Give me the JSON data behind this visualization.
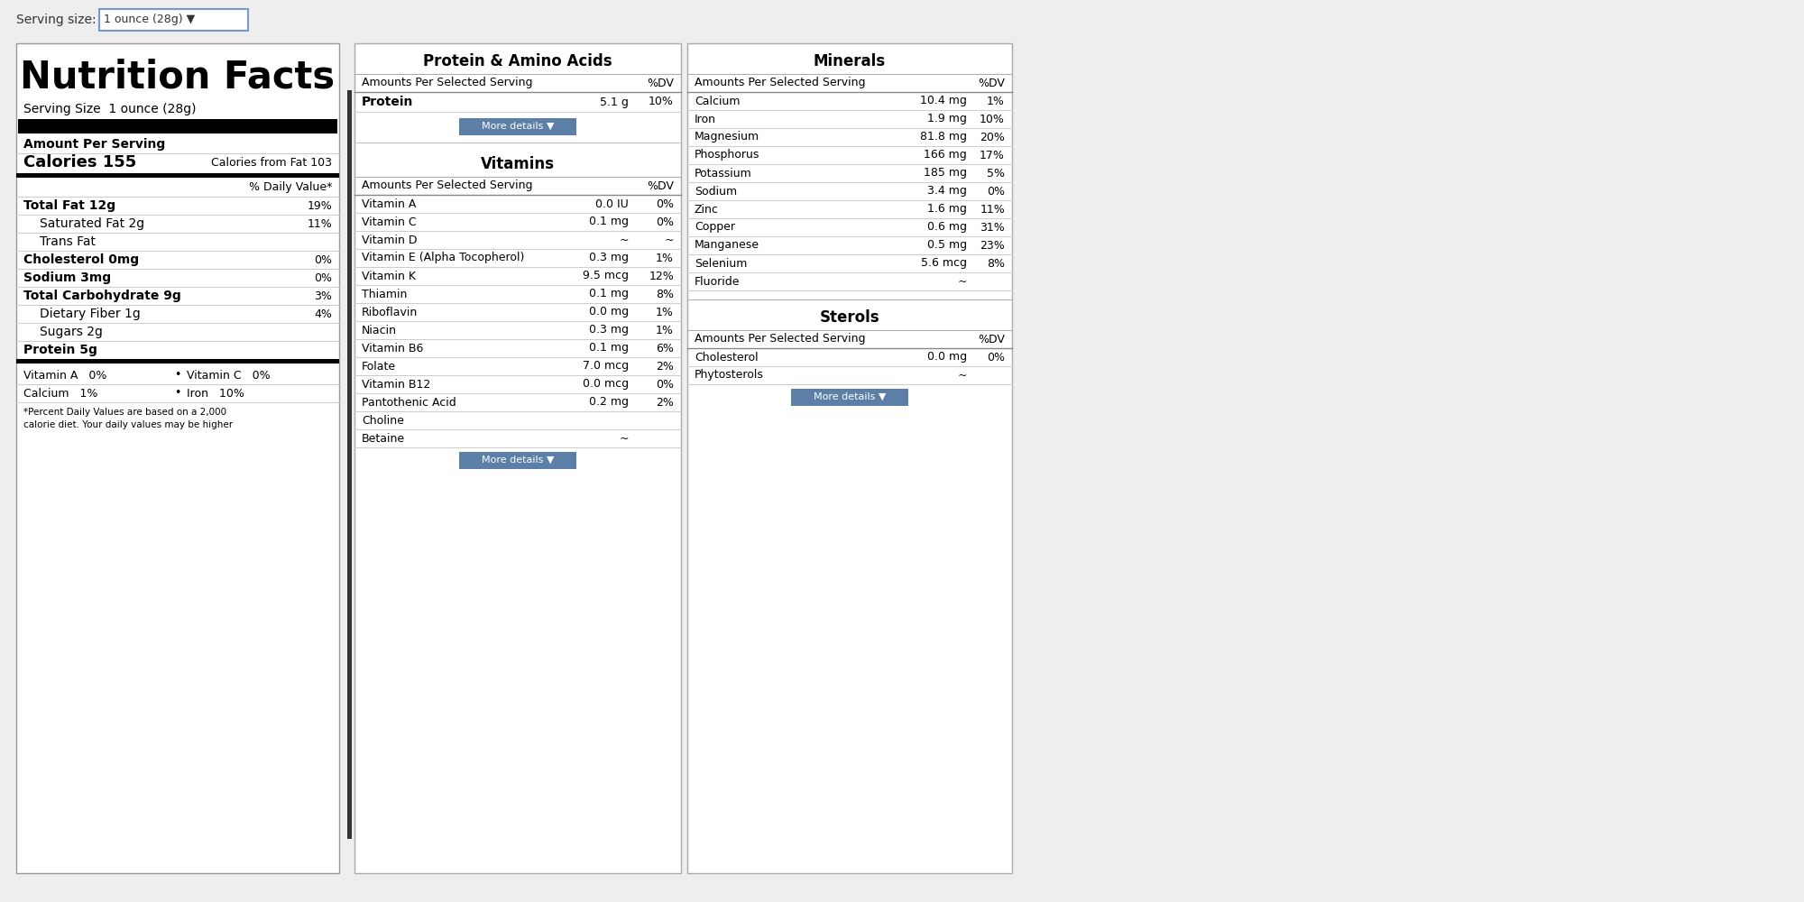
{
  "serving_size": "1 ounce (28g)",
  "bg_color": "#eeeeee",
  "panel_bg": "#ffffff",
  "border_color": "#aaaaaa",
  "button_color": "#5b7fa6",
  "nutrition_facts": {
    "title": "Nutrition Facts",
    "serving_size": "Serving Size  1 ounce (28g)",
    "calories": "155",
    "calories_from_fat": "103",
    "items": [
      {
        "name": "Total Fat 12g",
        "dv": "19%",
        "bold": true,
        "indent": 0
      },
      {
        "name": "Saturated Fat 2g",
        "dv": "11%",
        "bold": false,
        "indent": 1
      },
      {
        "name": "Trans Fat",
        "dv": "",
        "bold": false,
        "indent": 1
      },
      {
        "name": "Cholesterol 0mg",
        "dv": "0%",
        "bold": true,
        "indent": 0
      },
      {
        "name": "Sodium 3mg",
        "dv": "0%",
        "bold": true,
        "indent": 0
      },
      {
        "name": "Total Carbohydrate 9g",
        "dv": "3%",
        "bold": true,
        "indent": 0
      },
      {
        "name": "Dietary Fiber 1g",
        "dv": "4%",
        "bold": false,
        "indent": 1
      },
      {
        "name": "Sugars 2g",
        "dv": "",
        "bold": false,
        "indent": 1
      },
      {
        "name": "Protein 5g",
        "dv": "",
        "bold": true,
        "indent": 0
      }
    ],
    "vitamins": [
      {
        "name": "Vitamin A",
        "dv": "0%"
      },
      {
        "name": "Vitamin C",
        "dv": "0%"
      },
      {
        "name": "Calcium",
        "dv": "1%"
      },
      {
        "name": "Iron",
        "dv": "10%"
      }
    ],
    "footnote": "*Percent Daily Values are based on a 2,000\ncalorie diet. Your daily values may be higher"
  },
  "protein_section": {
    "title": "Protein & Amino Acids",
    "header_label": "Amounts Per Selected Serving",
    "dv_label": "%DV",
    "items": [
      {
        "name": "Protein",
        "amount": "5.1 g",
        "dv": "10%"
      }
    ]
  },
  "vitamins_section": {
    "title": "Vitamins",
    "header_label": "Amounts Per Selected Serving",
    "dv_label": "%DV",
    "items": [
      {
        "name": "Vitamin A",
        "amount": "0.0 IU",
        "dv": "0%"
      },
      {
        "name": "Vitamin C",
        "amount": "0.1 mg",
        "dv": "0%"
      },
      {
        "name": "Vitamin D",
        "amount": "~",
        "dv": "~"
      },
      {
        "name": "Vitamin E (Alpha Tocopherol)",
        "amount": "0.3 mg",
        "dv": "1%"
      },
      {
        "name": "Vitamin K",
        "amount": "9.5 mcg",
        "dv": "12%"
      },
      {
        "name": "Thiamin",
        "amount": "0.1 mg",
        "dv": "8%"
      },
      {
        "name": "Riboflavin",
        "amount": "0.0 mg",
        "dv": "1%"
      },
      {
        "name": "Niacin",
        "amount": "0.3 mg",
        "dv": "1%"
      },
      {
        "name": "Vitamin B6",
        "amount": "0.1 mg",
        "dv": "6%"
      },
      {
        "name": "Folate",
        "amount": "7.0 mcg",
        "dv": "2%"
      },
      {
        "name": "Vitamin B12",
        "amount": "0.0 mcg",
        "dv": "0%"
      },
      {
        "name": "Pantothenic Acid",
        "amount": "0.2 mg",
        "dv": "2%"
      },
      {
        "name": "Choline",
        "amount": "",
        "dv": ""
      },
      {
        "name": "Betaine",
        "amount": "~",
        "dv": ""
      }
    ]
  },
  "minerals_section": {
    "title": "Minerals",
    "header_label": "Amounts Per Selected Serving",
    "dv_label": "%DV",
    "items": [
      {
        "name": "Calcium",
        "amount": "10.4 mg",
        "dv": "1%"
      },
      {
        "name": "Iron",
        "amount": "1.9 mg",
        "dv": "10%"
      },
      {
        "name": "Magnesium",
        "amount": "81.8 mg",
        "dv": "20%"
      },
      {
        "name": "Phosphorus",
        "amount": "166 mg",
        "dv": "17%"
      },
      {
        "name": "Potassium",
        "amount": "185 mg",
        "dv": "5%"
      },
      {
        "name": "Sodium",
        "amount": "3.4 mg",
        "dv": "0%"
      },
      {
        "name": "Zinc",
        "amount": "1.6 mg",
        "dv": "11%"
      },
      {
        "name": "Copper",
        "amount": "0.6 mg",
        "dv": "31%"
      },
      {
        "name": "Manganese",
        "amount": "0.5 mg",
        "dv": "23%"
      },
      {
        "name": "Selenium",
        "amount": "5.6 mcg",
        "dv": "8%"
      },
      {
        "name": "Fluoride",
        "amount": "~",
        "dv": ""
      }
    ]
  },
  "sterols_section": {
    "title": "Sterols",
    "header_label": "Amounts Per Selected Serving",
    "dv_label": "%DV",
    "items": [
      {
        "name": "Cholesterol",
        "amount": "0.0 mg",
        "dv": "0%"
      },
      {
        "name": "Phytosterols",
        "amount": "~",
        "dv": ""
      }
    ]
  }
}
